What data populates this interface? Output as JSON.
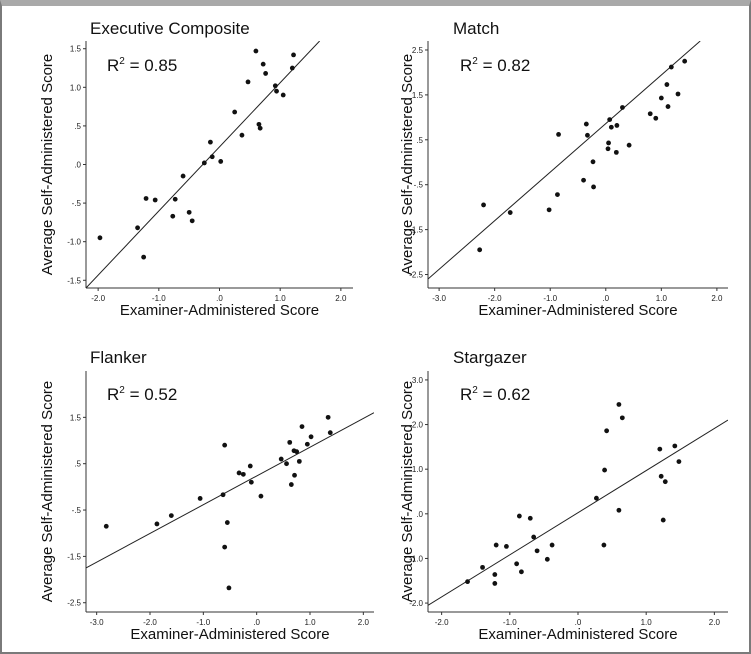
{
  "chart_data": [
    {
      "type": "scatter",
      "title": "Executive Composite",
      "annotation": "R² = 0.85",
      "annotation_base": "R",
      "annotation_sup": "2",
      "annotation_rest": " = 0.85",
      "xlabel": "Examiner-Administered Score",
      "ylabel": "Average Self-Administered Score",
      "xlim": [
        -2.2,
        2.2
      ],
      "ylim": [
        -1.6,
        1.6
      ],
      "xticks": [
        -2.0,
        -1.0,
        0,
        1.0,
        2.0
      ],
      "xtick_labels": [
        "-2.0",
        "-1.0",
        ".0",
        "1.0",
        "2.0"
      ],
      "yticks": [
        -1.5,
        -1.0,
        -0.5,
        0,
        0.5,
        1.0,
        1.5
      ],
      "ytick_labels": [
        "-1.5",
        "-1.0",
        "-.5",
        ".0",
        ".5",
        "1.0",
        "1.5"
      ],
      "fit_line": [
        [
          -2.2,
          -1.6
        ],
        [
          1.65,
          1.6
        ]
      ],
      "points": [
        [
          -1.97,
          -0.95
        ],
        [
          -1.35,
          -0.82
        ],
        [
          -1.25,
          -1.2
        ],
        [
          -1.21,
          -0.44
        ],
        [
          -1.06,
          -0.46
        ],
        [
          -0.77,
          -0.67
        ],
        [
          -0.73,
          -0.45
        ],
        [
          -0.6,
          -0.15
        ],
        [
          -0.5,
          -0.62
        ],
        [
          -0.45,
          -0.73
        ],
        [
          -0.25,
          0.02
        ],
        [
          -0.15,
          0.29
        ],
        [
          -0.12,
          0.1
        ],
        [
          0.02,
          0.04
        ],
        [
          0.25,
          0.68
        ],
        [
          0.37,
          0.38
        ],
        [
          0.47,
          1.07
        ],
        [
          0.6,
          1.47
        ],
        [
          0.65,
          0.52
        ],
        [
          0.67,
          0.47
        ],
        [
          0.72,
          1.3
        ],
        [
          0.76,
          1.18
        ],
        [
          0.92,
          1.02
        ],
        [
          0.94,
          0.95
        ],
        [
          1.05,
          0.9
        ],
        [
          1.2,
          1.25
        ],
        [
          1.22,
          1.42
        ]
      ]
    },
    {
      "type": "scatter",
      "title": "Match",
      "annotation": "R² = 0.82",
      "annotation_base": "R",
      "annotation_sup": "2",
      "annotation_rest": " = 0.82",
      "xlabel": "Examiner-Administered Score",
      "ylabel": "Average Self-Administered Score",
      "xlim": [
        -3.2,
        2.2
      ],
      "ylim": [
        -2.8,
        2.7
      ],
      "xticks": [
        -3.0,
        -2.0,
        -1.0,
        0,
        1.0,
        2.0
      ],
      "xtick_labels": [
        "-3.0",
        "-2.0",
        "-1.0",
        ".0",
        "1.0",
        "2.0"
      ],
      "yticks": [
        -2.5,
        -1.5,
        -0.5,
        0.5,
        1.5,
        2.5
      ],
      "ytick_labels": [
        "-2.5",
        "-1.5",
        "-.5",
        ".5",
        "1.5",
        "2.5"
      ],
      "fit_line": [
        [
          -3.2,
          -2.6
        ],
        [
          1.7,
          2.7
        ]
      ],
      "points": [
        [
          -2.27,
          -1.95
        ],
        [
          -2.2,
          -0.95
        ],
        [
          -1.72,
          -1.12
        ],
        [
          -1.02,
          -1.06
        ],
        [
          -0.87,
          -0.72
        ],
        [
          -0.85,
          0.62
        ],
        [
          -0.33,
          0.6
        ],
        [
          -0.35,
          0.85
        ],
        [
          -0.4,
          -0.4
        ],
        [
          -0.22,
          -0.55
        ],
        [
          -0.23,
          0.01
        ],
        [
          0.04,
          0.3
        ],
        [
          0.05,
          0.43
        ],
        [
          0.07,
          0.95
        ],
        [
          0.1,
          0.78
        ],
        [
          0.19,
          0.22
        ],
        [
          0.2,
          0.82
        ],
        [
          0.3,
          1.22
        ],
        [
          0.42,
          0.38
        ],
        [
          0.8,
          1.08
        ],
        [
          0.9,
          0.98
        ],
        [
          1.0,
          1.43
        ],
        [
          1.1,
          1.73
        ],
        [
          1.12,
          1.24
        ],
        [
          1.18,
          2.12
        ],
        [
          1.3,
          1.52
        ],
        [
          1.42,
          2.25
        ]
      ]
    },
    {
      "type": "scatter",
      "title": "Flanker",
      "annotation": "R² = 0.52",
      "annotation_base": "R",
      "annotation_sup": "2",
      "annotation_rest": " = 0.52",
      "xlabel": "Examiner-Administered Score",
      "ylabel": "Average Self-Administered Score",
      "xlim": [
        -3.2,
        2.2
      ],
      "ylim": [
        -2.7,
        2.5
      ],
      "xticks": [
        -3.0,
        -2.0,
        -1.0,
        0,
        1.0,
        2.0
      ],
      "xtick_labels": [
        "-3.0",
        "-2.0",
        "-1.0",
        ".0",
        "1.0",
        "2.0"
      ],
      "yticks": [
        -2.5,
        -1.5,
        -0.5,
        0.5,
        1.5
      ],
      "ytick_labels": [
        "-2.5",
        "-1.5",
        "-.5",
        ".5",
        "1.5"
      ],
      "fit_line": [
        [
          -3.2,
          -1.75
        ],
        [
          2.2,
          1.6
        ]
      ],
      "points": [
        [
          -2.82,
          -0.85
        ],
        [
          -1.87,
          -0.8
        ],
        [
          -1.6,
          -0.62
        ],
        [
          -1.06,
          -0.25
        ],
        [
          -0.63,
          -0.17
        ],
        [
          -0.6,
          -1.3
        ],
        [
          -0.6,
          0.9
        ],
        [
          -0.55,
          -0.77
        ],
        [
          -0.52,
          -2.18
        ],
        [
          -0.33,
          0.3
        ],
        [
          -0.25,
          0.27
        ],
        [
          -0.12,
          0.45
        ],
        [
          -0.1,
          0.1
        ],
        [
          0.08,
          -0.2
        ],
        [
          0.46,
          0.6
        ],
        [
          0.56,
          0.5
        ],
        [
          0.62,
          0.96
        ],
        [
          0.65,
          0.05
        ],
        [
          0.7,
          0.78
        ],
        [
          0.71,
          0.25
        ],
        [
          0.75,
          0.76
        ],
        [
          0.8,
          0.55
        ],
        [
          0.85,
          1.3
        ],
        [
          0.95,
          0.92
        ],
        [
          1.02,
          1.08
        ],
        [
          1.34,
          1.5
        ],
        [
          1.38,
          1.17
        ]
      ]
    },
    {
      "type": "scatter",
      "title": "Stargazer",
      "annotation": "R² = 0.62",
      "annotation_base": "R",
      "annotation_sup": "2",
      "annotation_rest": " = 0.62",
      "xlabel": "Examiner-Administered Score",
      "ylabel": "Average Self-Administered Score",
      "xlim": [
        -2.2,
        2.2
      ],
      "ylim": [
        -2.2,
        3.2
      ],
      "xticks": [
        -2.0,
        -1.0,
        0,
        1.0,
        2.0
      ],
      "xtick_labels": [
        "-2.0",
        "-1.0",
        ".0",
        "1.0",
        "2.0"
      ],
      "yticks": [
        -2.0,
        -1.0,
        0,
        1.0,
        2.0,
        3.0
      ],
      "ytick_labels": [
        "-2.0",
        "-1.0",
        ".0",
        "1.0",
        "2.0",
        "3.0"
      ],
      "fit_line": [
        [
          -2.2,
          -2.05
        ],
        [
          2.2,
          2.1
        ]
      ],
      "points": [
        [
          -1.62,
          -1.52
        ],
        [
          -1.4,
          -1.2
        ],
        [
          -1.22,
          -1.36
        ],
        [
          -1.22,
          -1.56
        ],
        [
          -1.2,
          -0.7
        ],
        [
          -1.05,
          -0.73
        ],
        [
          -0.9,
          -1.12
        ],
        [
          -0.86,
          -0.05
        ],
        [
          -0.83,
          -1.3
        ],
        [
          -0.7,
          -0.1
        ],
        [
          -0.65,
          -0.52
        ],
        [
          -0.6,
          -0.83
        ],
        [
          -0.45,
          -1.02
        ],
        [
          -0.38,
          -0.7
        ],
        [
          0.27,
          0.35
        ],
        [
          0.38,
          -0.7
        ],
        [
          0.39,
          0.98
        ],
        [
          0.42,
          1.86
        ],
        [
          0.6,
          0.08
        ],
        [
          0.6,
          2.45
        ],
        [
          0.65,
          2.15
        ],
        [
          1.2,
          1.45
        ],
        [
          1.22,
          0.84
        ],
        [
          1.25,
          -0.14
        ],
        [
          1.28,
          0.72
        ],
        [
          1.42,
          1.52
        ],
        [
          1.48,
          1.17
        ]
      ]
    }
  ]
}
